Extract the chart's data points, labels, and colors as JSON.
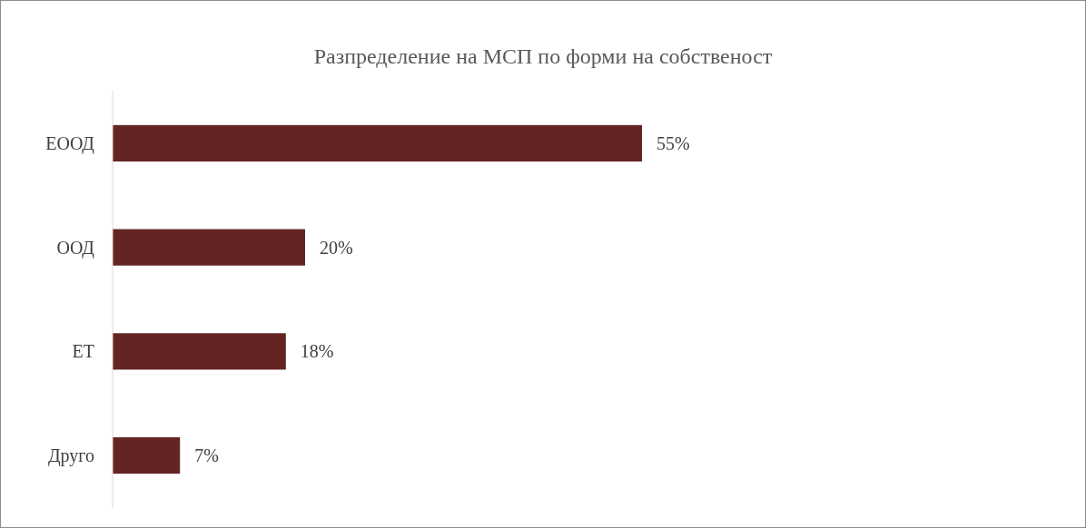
{
  "chart_data": {
    "type": "bar",
    "orientation": "horizontal",
    "title": "Разпределение на МСП по форми на собственост",
    "categories": [
      "ЕООД",
      "ООД",
      "ЕТ",
      "Друго"
    ],
    "values": [
      55,
      20,
      18,
      7
    ],
    "value_labels": [
      "55%",
      "20%",
      "18%",
      "7%"
    ],
    "color": "#632523"
  }
}
